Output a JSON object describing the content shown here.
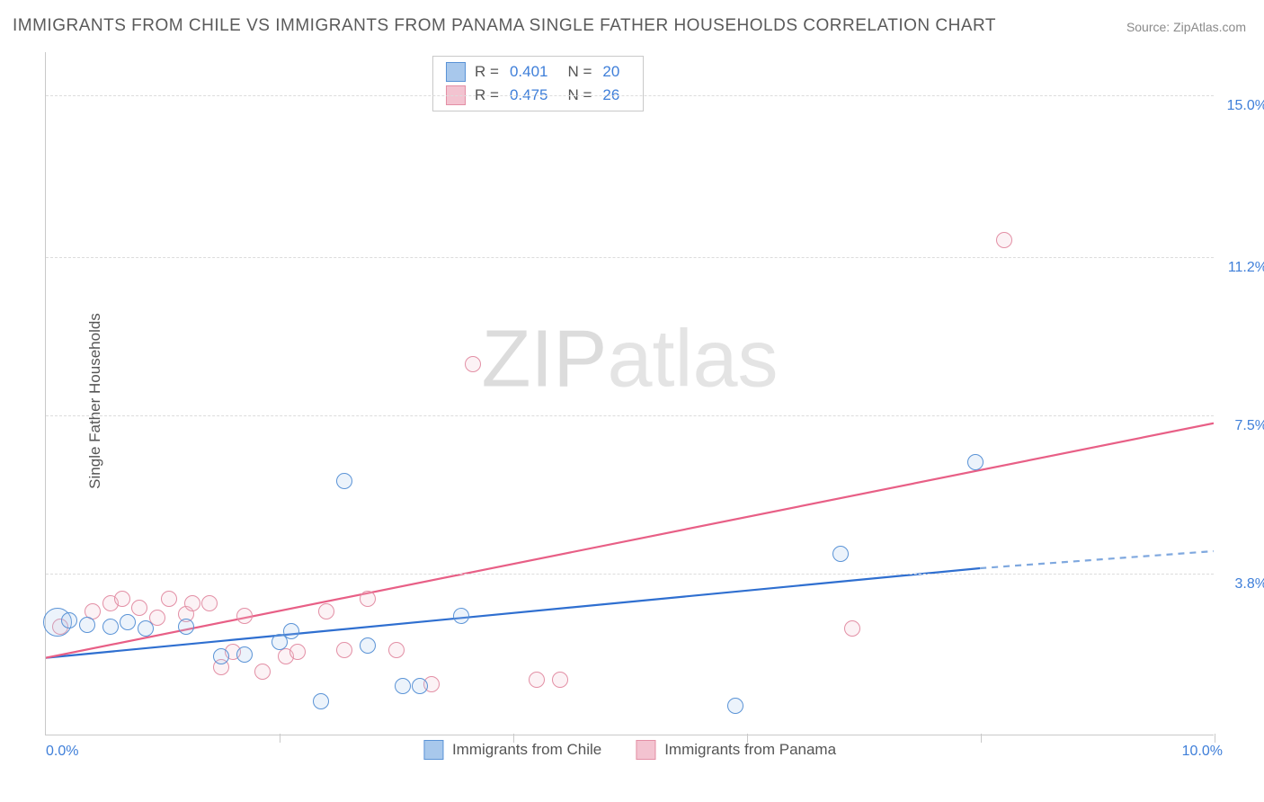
{
  "title": "IMMIGRANTS FROM CHILE VS IMMIGRANTS FROM PANAMA SINGLE FATHER HOUSEHOLDS CORRELATION CHART",
  "source": "Source: ZipAtlas.com",
  "y_axis_title": "Single Father Households",
  "watermark": {
    "bold": "ZIP",
    "light": "atlas"
  },
  "chart": {
    "type": "scatter",
    "xlim": [
      0,
      10
    ],
    "ylim": [
      0,
      16
    ],
    "x_tick_labels": {
      "low": "0.0%",
      "high": "10.0%"
    },
    "y_grid": [
      {
        "value": 3.8,
        "label": "3.8%"
      },
      {
        "value": 7.5,
        "label": "7.5%"
      },
      {
        "value": 11.2,
        "label": "11.2%"
      },
      {
        "value": 15.0,
        "label": "15.0%"
      }
    ],
    "x_grid_ticks": [
      2,
      4,
      6,
      8,
      10
    ],
    "background_color": "#ffffff",
    "grid_color": "#dcdcdc",
    "axis_color": "#c9c9c9",
    "tick_label_color": "#3f7fd9",
    "axis_title_color": "#555555",
    "axis_title_fontsize": 17,
    "tick_fontsize": 16,
    "title_fontsize": 19,
    "title_color": "#5a5a5a",
    "marker_radius": 9,
    "marker_stroke_width": 1.4,
    "marker_fill_opacity": 0.22,
    "trend_line_width": 2.2
  },
  "series": {
    "chile": {
      "label": "Immigrants from Chile",
      "color_stroke": "#5a93d6",
      "color_fill": "#a8c8ec",
      "trend_color": "#2f6fd0",
      "trend_dash_color": "#7fa8df",
      "correlation": {
        "r": "0.401",
        "n": "20"
      },
      "trend": {
        "x1": 0,
        "y1": 1.8,
        "x2": 8.0,
        "y2": 3.9,
        "dash_x2": 10.0,
        "dash_y2": 4.3
      },
      "points": [
        {
          "x": 0.1,
          "y": 2.65,
          "r": 16
        },
        {
          "x": 0.2,
          "y": 2.7
        },
        {
          "x": 0.35,
          "y": 2.6
        },
        {
          "x": 0.55,
          "y": 2.55
        },
        {
          "x": 0.7,
          "y": 2.65
        },
        {
          "x": 0.85,
          "y": 2.5
        },
        {
          "x": 1.2,
          "y": 2.55
        },
        {
          "x": 1.5,
          "y": 1.85
        },
        {
          "x": 1.7,
          "y": 1.9
        },
        {
          "x": 2.0,
          "y": 2.2
        },
        {
          "x": 2.1,
          "y": 2.45
        },
        {
          "x": 2.35,
          "y": 0.8
        },
        {
          "x": 2.55,
          "y": 5.95
        },
        {
          "x": 2.75,
          "y": 2.1
        },
        {
          "x": 3.05,
          "y": 1.15
        },
        {
          "x": 3.2,
          "y": 1.15
        },
        {
          "x": 3.55,
          "y": 2.8
        },
        {
          "x": 5.9,
          "y": 0.7
        },
        {
          "x": 6.8,
          "y": 4.25
        },
        {
          "x": 7.95,
          "y": 6.4
        }
      ]
    },
    "panama": {
      "label": "Immigrants from Panama",
      "color_stroke": "#e38fa5",
      "color_fill": "#f3c3d0",
      "trend_color": "#e85f86",
      "correlation": {
        "r": "0.475",
        "n": "26"
      },
      "trend": {
        "x1": 0,
        "y1": 1.8,
        "x2": 10.0,
        "y2": 7.3
      },
      "points": [
        {
          "x": 0.12,
          "y": 2.55
        },
        {
          "x": 0.4,
          "y": 2.9
        },
        {
          "x": 0.55,
          "y": 3.1
        },
        {
          "x": 0.65,
          "y": 3.2
        },
        {
          "x": 0.8,
          "y": 3.0
        },
        {
          "x": 0.95,
          "y": 2.75
        },
        {
          "x": 1.05,
          "y": 3.2
        },
        {
          "x": 1.2,
          "y": 2.85
        },
        {
          "x": 1.25,
          "y": 3.1
        },
        {
          "x": 1.4,
          "y": 3.1
        },
        {
          "x": 1.5,
          "y": 1.6
        },
        {
          "x": 1.7,
          "y": 2.8
        },
        {
          "x": 1.6,
          "y": 1.95
        },
        {
          "x": 1.85,
          "y": 1.5
        },
        {
          "x": 2.05,
          "y": 1.85
        },
        {
          "x": 2.15,
          "y": 1.95
        },
        {
          "x": 2.4,
          "y": 2.9
        },
        {
          "x": 2.55,
          "y": 2.0
        },
        {
          "x": 2.75,
          "y": 3.2
        },
        {
          "x": 3.0,
          "y": 2.0
        },
        {
          "x": 3.3,
          "y": 1.2
        },
        {
          "x": 3.65,
          "y": 8.7
        },
        {
          "x": 4.2,
          "y": 1.3
        },
        {
          "x": 4.4,
          "y": 1.3
        },
        {
          "x": 6.9,
          "y": 2.5
        },
        {
          "x": 8.2,
          "y": 11.6
        }
      ]
    }
  },
  "correlation_legend": {
    "r_label": "R =",
    "n_label": "N ="
  }
}
